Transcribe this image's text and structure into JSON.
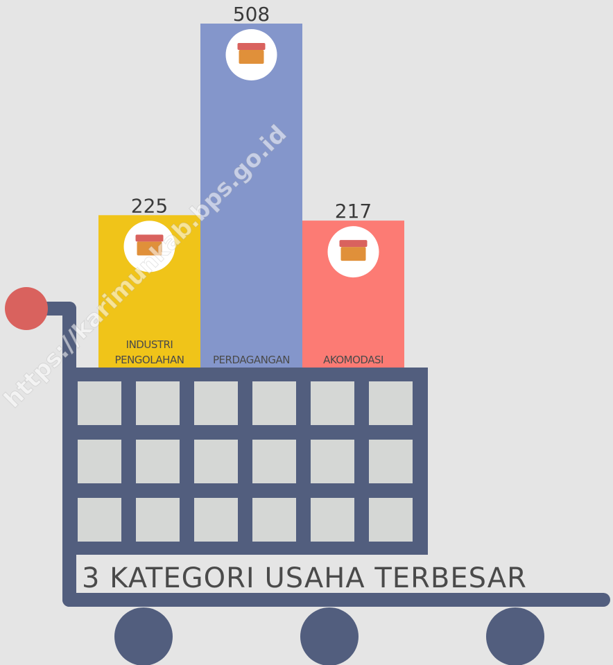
{
  "chart_data": {
    "type": "bar",
    "title": "3 KATEGORI USAHA TERBESAR",
    "categories": [
      "INDUSTRI PENGOLAHAN",
      "PERDAGANGAN",
      "AKOMODASI"
    ],
    "values": [
      225,
      508,
      217
    ],
    "colors": [
      "#f0c419",
      "#8496cb",
      "#fc7b74"
    ],
    "watermark": "https://karimunkab.bps.go.id"
  }
}
